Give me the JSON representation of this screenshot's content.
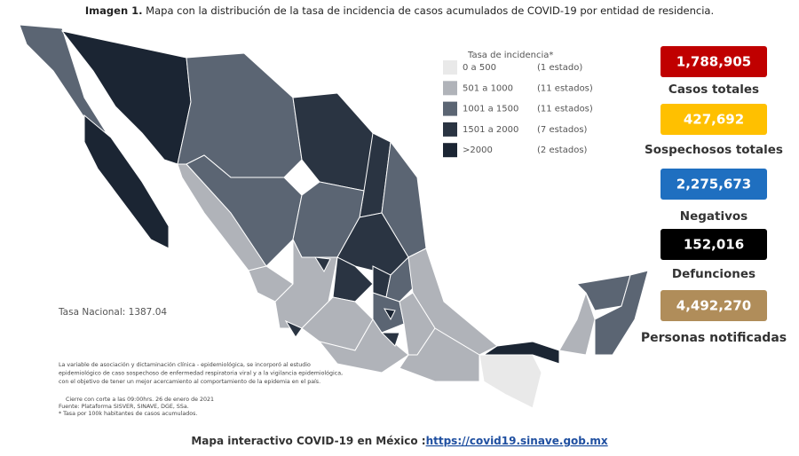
{
  "title": {
    "label": "Imagen 1.",
    "text": "Mapa con la distribución de la tasa de incidencia de casos acumulados de COVID-19 por entidad de residencia."
  },
  "legend": {
    "title": "Tasa de incidencia*",
    "items": [
      {
        "range": "0 a 500",
        "count": "(1 estado)",
        "color": "#e9e9e9"
      },
      {
        "range": "501 a 1000",
        "count": "(11 estados)",
        "color": "#b0b3b9"
      },
      {
        "range": "1001 a 1500",
        "count": "(11 estados)",
        "color": "#5b6573"
      },
      {
        "range": "1501 a 2000",
        "count": "(7 estados)",
        "color": "#2a3442"
      },
      {
        "range": ">2000",
        "count": "(2 estados)",
        "color": "#1b2533"
      }
    ]
  },
  "stats": [
    {
      "value": "1,788,905",
      "label": "Casos totales",
      "color": "#c00000"
    },
    {
      "value": "427,692",
      "label": "Sospechosos totales",
      "color": "#ffc000"
    },
    {
      "value": "2,275,673",
      "label": "Negativos",
      "color": "#1f6fc0"
    },
    {
      "value": "152,016",
      "label": "Defunciones",
      "color": "#000000"
    },
    {
      "value": "4,492,270",
      "label": "Personas notificadas",
      "color": "#b08d5a"
    }
  ],
  "national_rate": "Tasa Nacional: 1387.04",
  "notes": [
    "La variable de asociación y dictaminación clínica - epidemiológica, se incorporó al estudio",
    "epidemiológico de caso sospechoso de enfermedad respiratoria viral y a la vigilancia epidemiológica,",
    "con el objetivo de tener un mejor acercamiento al comportamiento de la epidemia en el país."
  ],
  "source": [
    "Cierre con corte a las 09:00hrs. 26 de enero de 2021",
    "Fuente: Plataforma SISVER, SINAVE, DGE, SSa.",
    "* Tasa por 100k habitantes de casos acumulados."
  ],
  "footer": {
    "text": "Mapa interactivo COVID-19 en México :",
    "link": "https://covid19.sinave.gob.mx"
  }
}
